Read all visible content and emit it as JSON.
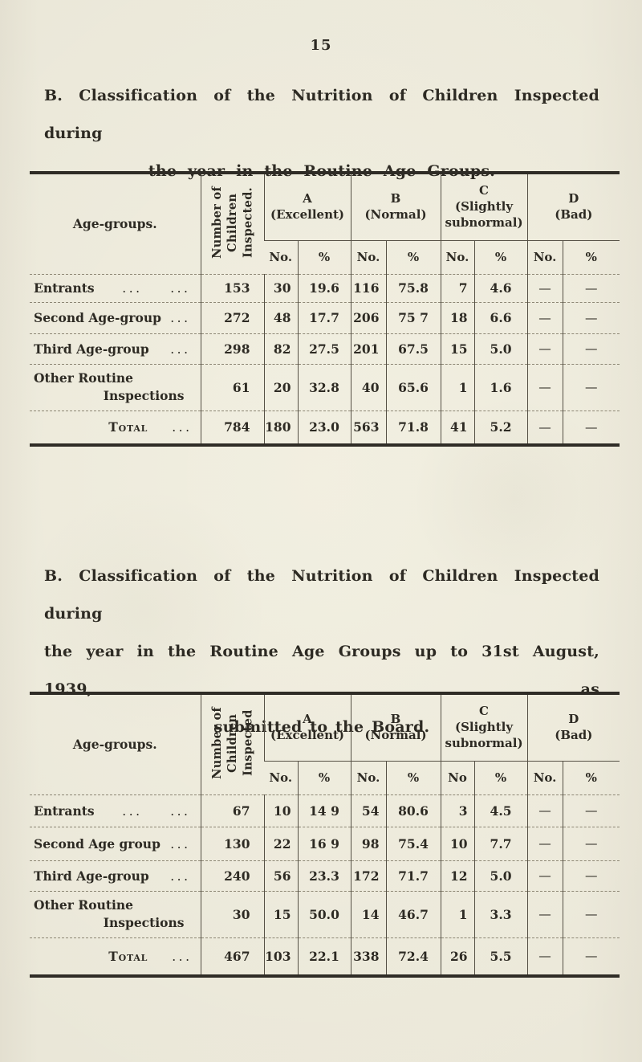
{
  "page_number": "15",
  "sections": [
    {
      "heading": {
        "line1": "B. Classification of the Nutrition of Children Inspected during",
        "line2": "the year in the Routine Age Groups."
      },
      "table": {
        "age_col_header": "Age-groups.",
        "number_col_header": "Number of\nChildren\nInspected.",
        "groups": [
          {
            "label": "A\n(Excellent)"
          },
          {
            "label": "B\n(Normal)"
          },
          {
            "label": "C\n(Slightly\nsubnormal)"
          },
          {
            "label": "D\n(Bad)"
          }
        ],
        "sub_headers": [
          "No.",
          "%",
          "No.",
          "%",
          "No.",
          "%",
          "No.",
          "%"
        ],
        "rows": [
          {
            "label": "Entrants",
            "label2": "",
            "dots1": "...",
            "dots2": "...",
            "number": "153",
            "cells": [
              "30",
              "19.6",
              "116",
              "75.8",
              "7",
              "4.6",
              "—",
              "—"
            ]
          },
          {
            "label": "Second Age-group",
            "label2": "",
            "dots1": "",
            "dots2": "...",
            "number": "272",
            "cells": [
              "48",
              "17.7",
              "206",
              "75 7",
              "18",
              "6.6",
              "—",
              "—"
            ]
          },
          {
            "label": "Third Age-group",
            "label2": "",
            "dots1": "",
            "dots2": "...",
            "number": "298",
            "cells": [
              "82",
              "27.5",
              "201",
              "67.5",
              "15",
              "5.0",
              "—",
              "—"
            ]
          },
          {
            "label": "Other Routine",
            "label2": "Inspections",
            "dots1": "",
            "dots2": "",
            "number": "61",
            "cells": [
              "20",
              "32.8",
              "40",
              "65.6",
              "1",
              "1.6",
              "—",
              "—"
            ]
          },
          {
            "label": "Total",
            "label2": "",
            "dots1": "",
            "dots2": "...",
            "number": "784",
            "cells": [
              "180",
              "23.0",
              "563",
              "71.8",
              "41",
              "5.2",
              "—",
              "—"
            ]
          }
        ]
      }
    },
    {
      "heading": {
        "line1": "B. Classification of the Nutrition of Children Inspected during",
        "line2": "the year in the Routine Age Groups up to 31st August, 1939, as",
        "line3": "submitted to the Board."
      },
      "table": {
        "age_col_header": "Age-groups.",
        "number_col_header": "Number of\nChildren\nInspected",
        "groups": [
          {
            "label": "A\n(Excellent)"
          },
          {
            "label": "B\n(Normal)"
          },
          {
            "label": "C\n(Slightly\nsubnormal)"
          },
          {
            "label": "D\n(Bad)"
          }
        ],
        "sub_headers": [
          "No.",
          "%",
          "No.",
          "%",
          "No",
          "%",
          "No.",
          "%"
        ],
        "rows": [
          {
            "label": "Entrants",
            "label2": "",
            "dots1": "...",
            "dots2": "...",
            "number": "67",
            "cells": [
              "10",
              "14 9",
              "54",
              "80.6",
              "3",
              "4.5",
              "—",
              "—"
            ]
          },
          {
            "label": "Second Age group",
            "label2": "",
            "dots1": "",
            "dots2": "...",
            "number": "130",
            "cells": [
              "22",
              "16 9",
              "98",
              "75.4",
              "10",
              "7.7",
              "—",
              "—"
            ]
          },
          {
            "label": "Third Age-group",
            "label2": "",
            "dots1": "",
            "dots2": "...",
            "number": "240",
            "cells": [
              "56",
              "23.3",
              "172",
              "71.7",
              "12",
              "5.0",
              "—",
              "—"
            ]
          },
          {
            "label": "Other Routine",
            "label2": "Inspections",
            "dots1": "",
            "dots2": "",
            "number": "30",
            "cells": [
              "15",
              "50.0",
              "14",
              "46.7",
              "1",
              "3.3",
              "—",
              "—"
            ]
          },
          {
            "label": "Total",
            "label2": "",
            "dots1": "",
            "dots2": "...",
            "number": "467",
            "cells": [
              "103",
              "22.1",
              "338",
              "72.4",
              "26",
              "5.5",
              "—",
              "—"
            ]
          }
        ]
      }
    }
  ]
}
